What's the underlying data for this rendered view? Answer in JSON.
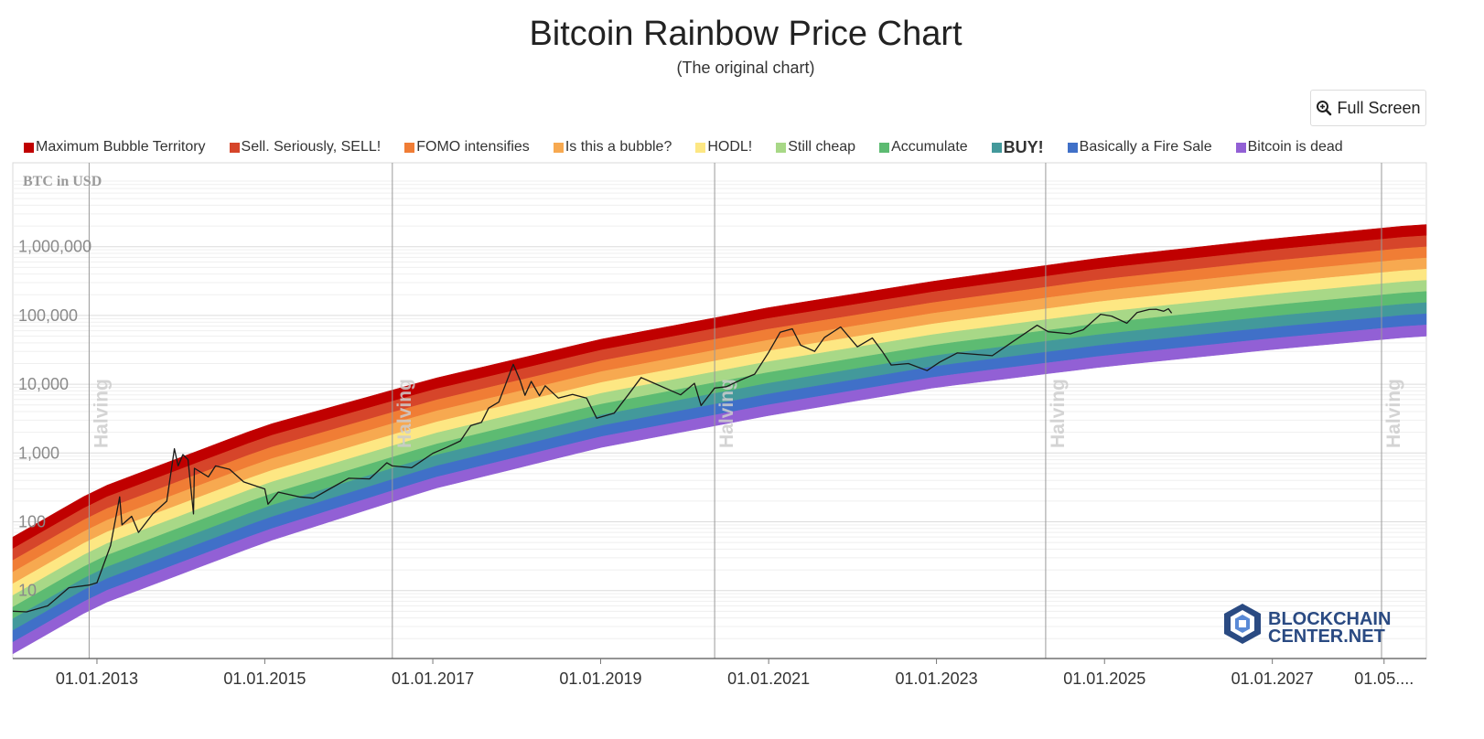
{
  "header": {
    "title": "Bitcoin Rainbow Price Chart",
    "subtitle": "(The original chart)"
  },
  "toolbar": {
    "fullscreen_label": "Full Screen",
    "fullscreen_icon": "zoom-in-icon"
  },
  "legend": [
    {
      "label": "Maximum Bubble Territory",
      "color": "#c00000"
    },
    {
      "label": "Sell. Seriously, SELL!",
      "color": "#d6452a"
    },
    {
      "label": "FOMO intensifies",
      "color": "#f07d35"
    },
    {
      "label": "Is this a bubble?",
      "color": "#f7a950"
    },
    {
      "label": "HODL!",
      "color": "#fde783"
    },
    {
      "label": "Still cheap",
      "color": "#a8d887"
    },
    {
      "label": "Accumulate",
      "color": "#5dbb72"
    },
    {
      "label": "BUY!",
      "color": "#43999b"
    },
    {
      "label": "Basically a Fire Sale",
      "color": "#4070c8"
    },
    {
      "label": "Bitcoin is dead",
      "color": "#9260d5"
    }
  ],
  "logo": {
    "line1": "BLOCKCHAIN",
    "line2": "CENTER.NET"
  },
  "chart_data": {
    "type": "line",
    "title": "Bitcoin Rainbow Price Chart",
    "subtitle": "(The original chart)",
    "ylabel": "BTC in USD",
    "y_scale": "log",
    "y_ticks": [
      {
        "value": 10,
        "label": "10"
      },
      {
        "value": 100,
        "label": "100"
      },
      {
        "value": 1000,
        "label": "1,000"
      },
      {
        "value": 10000,
        "label": "10,000"
      },
      {
        "value": 100000,
        "label": "100,000"
      },
      {
        "value": 1000000,
        "label": "1,000,000"
      }
    ],
    "x_ticks": [
      {
        "date": "2013-01-01",
        "label": "01.01.2013"
      },
      {
        "date": "2015-01-01",
        "label": "01.01.2015"
      },
      {
        "date": "2017-01-01",
        "label": "01.01.2017"
      },
      {
        "date": "2019-01-01",
        "label": "01.01.2019"
      },
      {
        "date": "2021-01-01",
        "label": "01.01.2021"
      },
      {
        "date": "2023-01-01",
        "label": "01.01.2023"
      },
      {
        "date": "2025-01-01",
        "label": "01.01.2025"
      },
      {
        "date": "2027-01-01",
        "label": "01.01.2027"
      },
      {
        "date": "2028-05-01",
        "label": "01.05...."
      }
    ],
    "halvings": [
      {
        "date": "2012-11-28",
        "label": "Halving"
      },
      {
        "date": "2016-07-09",
        "label": "Halving"
      },
      {
        "date": "2020-05-11",
        "label": "Halving"
      },
      {
        "date": "2024-04-20",
        "label": "Halving"
      },
      {
        "date": "2028-04-20",
        "label": "Halving"
      }
    ],
    "bands": {
      "names": [
        "Maximum Bubble Territory",
        "Sell. Seriously, SELL!",
        "FOMO intensifies",
        "Is this a bubble?",
        "HODL!",
        "Still cheap",
        "Accumulate",
        "BUY!",
        "Basically a Fire Sale",
        "Bitcoin is dead"
      ],
      "upper_edge": [
        {
          "date": "2012-01-01",
          "price": 60
        },
        {
          "date": "2013-01-01",
          "price": 300
        },
        {
          "date": "2015-01-01",
          "price": 2500
        },
        {
          "date": "2017-01-01",
          "price": 12000
        },
        {
          "date": "2019-01-01",
          "price": 45000
        },
        {
          "date": "2021-01-01",
          "price": 130000
        },
        {
          "date": "2023-01-01",
          "price": 320000
        },
        {
          "date": "2025-01-01",
          "price": 700000
        },
        {
          "date": "2027-01-01",
          "price": 1300000
        },
        {
          "date": "2028-10-01",
          "price": 2100000
        }
      ],
      "lower_edge": [
        {
          "date": "2012-01-01",
          "price": 1.2
        },
        {
          "date": "2013-01-01",
          "price": 6
        },
        {
          "date": "2015-01-01",
          "price": 50
        },
        {
          "date": "2017-01-01",
          "price": 300
        },
        {
          "date": "2019-01-01",
          "price": 1200
        },
        {
          "date": "2021-01-01",
          "price": 3500
        },
        {
          "date": "2023-01-01",
          "price": 9000
        },
        {
          "date": "2025-01-01",
          "price": 18000
        },
        {
          "date": "2027-01-01",
          "price": 32000
        },
        {
          "date": "2028-10-01",
          "price": 50000
        }
      ]
    },
    "series": [
      {
        "values": [
          {
            "date": "2012-01-01",
            "price": 5
          },
          {
            "date": "2012-03-01",
            "price": 4.9
          },
          {
            "date": "2012-06-01",
            "price": 6
          },
          {
            "date": "2012-09-01",
            "price": 11
          },
          {
            "date": "2012-11-28",
            "price": 12
          },
          {
            "date": "2013-01-01",
            "price": 13
          },
          {
            "date": "2013-03-01",
            "price": 45
          },
          {
            "date": "2013-04-10",
            "price": 230
          },
          {
            "date": "2013-04-20",
            "price": 90
          },
          {
            "date": "2013-06-01",
            "price": 120
          },
          {
            "date": "2013-07-01",
            "price": 70
          },
          {
            "date": "2013-09-01",
            "price": 130
          },
          {
            "date": "2013-11-01",
            "price": 200
          },
          {
            "date": "2013-12-04",
            "price": 1150
          },
          {
            "date": "2013-12-20",
            "price": 650
          },
          {
            "date": "2014-01-10",
            "price": 950
          },
          {
            "date": "2014-02-01",
            "price": 800
          },
          {
            "date": "2014-02-25",
            "price": 130
          },
          {
            "date": "2014-03-01",
            "price": 600
          },
          {
            "date": "2014-05-01",
            "price": 450
          },
          {
            "date": "2014-06-01",
            "price": 650
          },
          {
            "date": "2014-08-01",
            "price": 580
          },
          {
            "date": "2014-10-01",
            "price": 380
          },
          {
            "date": "2015-01-01",
            "price": 300
          },
          {
            "date": "2015-01-15",
            "price": 180
          },
          {
            "date": "2015-03-01",
            "price": 270
          },
          {
            "date": "2015-06-01",
            "price": 230
          },
          {
            "date": "2015-08-01",
            "price": 220
          },
          {
            "date": "2015-11-01",
            "price": 330
          },
          {
            "date": "2016-01-01",
            "price": 430
          },
          {
            "date": "2016-04-01",
            "price": 420
          },
          {
            "date": "2016-06-15",
            "price": 720
          },
          {
            "date": "2016-07-09",
            "price": 650
          },
          {
            "date": "2016-10-01",
            "price": 610
          },
          {
            "date": "2017-01-01",
            "price": 990
          },
          {
            "date": "2017-03-01",
            "price": 1200
          },
          {
            "date": "2017-05-01",
            "price": 1500
          },
          {
            "date": "2017-06-15",
            "price": 2500
          },
          {
            "date": "2017-08-01",
            "price": 2800
          },
          {
            "date": "2017-09-01",
            "price": 4500
          },
          {
            "date": "2017-10-15",
            "price": 5500
          },
          {
            "date": "2017-12-17",
            "price": 19500
          },
          {
            "date": "2018-01-15",
            "price": 11500
          },
          {
            "date": "2018-02-06",
            "price": 6900
          },
          {
            "date": "2018-03-05",
            "price": 11000
          },
          {
            "date": "2018-04-10",
            "price": 6800
          },
          {
            "date": "2018-05-05",
            "price": 9500
          },
          {
            "date": "2018-07-01",
            "price": 6300
          },
          {
            "date": "2018-09-01",
            "price": 7100
          },
          {
            "date": "2018-11-01",
            "price": 6300
          },
          {
            "date": "2018-12-15",
            "price": 3200
          },
          {
            "date": "2019-03-01",
            "price": 3800
          },
          {
            "date": "2019-05-01",
            "price": 7000
          },
          {
            "date": "2019-06-26",
            "price": 12500
          },
          {
            "date": "2019-09-01",
            "price": 10000
          },
          {
            "date": "2019-12-15",
            "price": 7000
          },
          {
            "date": "2020-02-13",
            "price": 10300
          },
          {
            "date": "2020-03-13",
            "price": 4900
          },
          {
            "date": "2020-05-11",
            "price": 8800
          },
          {
            "date": "2020-07-01",
            "price": 9200
          },
          {
            "date": "2020-09-01",
            "price": 11500
          },
          {
            "date": "2020-11-01",
            "price": 14000
          },
          {
            "date": "2021-01-01",
            "price": 29000
          },
          {
            "date": "2021-02-20",
            "price": 57000
          },
          {
            "date": "2021-04-14",
            "price": 64000
          },
          {
            "date": "2021-05-20",
            "price": 37000
          },
          {
            "date": "2021-07-20",
            "price": 30000
          },
          {
            "date": "2021-09-01",
            "price": 48000
          },
          {
            "date": "2021-11-10",
            "price": 68000
          },
          {
            "date": "2022-01-22",
            "price": 35000
          },
          {
            "date": "2022-03-28",
            "price": 47000
          },
          {
            "date": "2022-05-10",
            "price": 30000
          },
          {
            "date": "2022-06-18",
            "price": 19000
          },
          {
            "date": "2022-09-01",
            "price": 20000
          },
          {
            "date": "2022-11-21",
            "price": 15800
          },
          {
            "date": "2023-01-15",
            "price": 21000
          },
          {
            "date": "2023-04-01",
            "price": 28500
          },
          {
            "date": "2023-09-01",
            "price": 26000
          },
          {
            "date": "2023-12-01",
            "price": 42000
          },
          {
            "date": "2024-03-14",
            "price": 72000
          },
          {
            "date": "2024-05-01",
            "price": 58000
          },
          {
            "date": "2024-08-05",
            "price": 54000
          },
          {
            "date": "2024-10-01",
            "price": 62000
          },
          {
            "date": "2024-12-15",
            "price": 104000
          },
          {
            "date": "2025-02-01",
            "price": 98000
          },
          {
            "date": "2025-04-08",
            "price": 77000
          },
          {
            "date": "2025-05-22",
            "price": 110000
          },
          {
            "date": "2025-07-14",
            "price": 122000
          },
          {
            "date": "2025-08-14",
            "price": 123000
          },
          {
            "date": "2025-09-15",
            "price": 115000
          },
          {
            "date": "2025-10-06",
            "price": 125000
          },
          {
            "date": "2025-10-20",
            "price": 108000
          }
        ]
      }
    ]
  }
}
